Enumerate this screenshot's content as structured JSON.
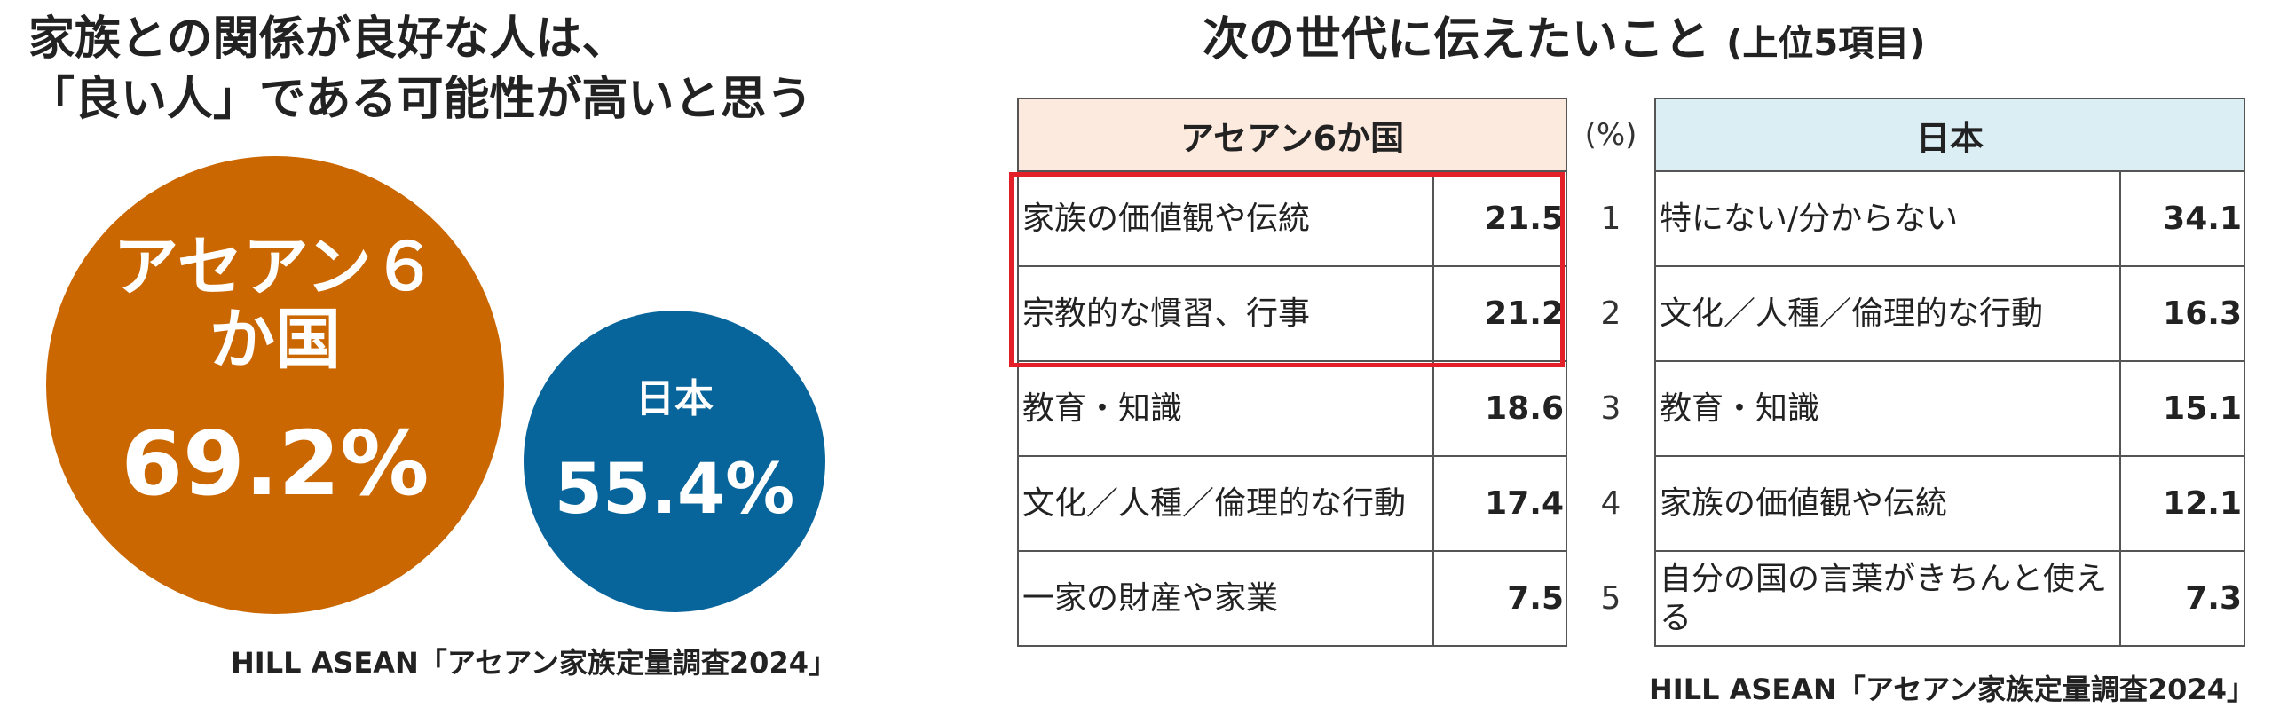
{
  "left_panel": {
    "title_line1": "家族との関係が良好な人は、",
    "title_line2": "「良い人」である可能性が高いと思う",
    "asean": {
      "label": "アセアン６か国",
      "value": "69.2%"
    },
    "japan": {
      "label": "日本",
      "value": "55.4%"
    },
    "source": "HILL ASEAN「アセアン家族定量調査2024」"
  },
  "right_panel": {
    "title": "次の世代に伝えたいこと",
    "title_sub": "(上位5項目)",
    "header_asean": "アセアン6か国",
    "header_unit": "(%)",
    "header_japan": "日本",
    "rows": [
      {
        "rank": "1",
        "asean_item": "家族の価値観や伝統",
        "asean_value": "21.5",
        "japan_item": "特にない/分からない",
        "japan_value": "34.1"
      },
      {
        "rank": "2",
        "asean_item": "宗教的な慣習、行事",
        "asean_value": "21.2",
        "japan_item": "文化／人種／倫理的な行動",
        "japan_value": "16.3"
      },
      {
        "rank": "3",
        "asean_item": "教育・知識",
        "asean_value": "18.6",
        "japan_item": "教育・知識",
        "japan_value": "15.1"
      },
      {
        "rank": "4",
        "asean_item": "文化／人種／倫理的な行動",
        "asean_value": "17.4",
        "japan_item": "家族の価値観や伝統",
        "japan_value": "12.1"
      },
      {
        "rank": "5",
        "asean_item": "一家の財産や家業",
        "asean_value": "7.5",
        "japan_item": "自分の国の言葉がきちんと使える",
        "japan_value": "7.3"
      }
    ],
    "source": "HILL ASEAN「アセアン家族定量調査2024」",
    "highlight_color": "#e32027"
  },
  "chart_data": [
    {
      "type": "bubble",
      "title": "家族との関係が良好な人は、「良い人」である可能性が高いと思う",
      "categories": [
        "アセアン６か国",
        "日本"
      ],
      "values": [
        69.2,
        55.4
      ],
      "unit": "%",
      "colors": [
        "#cb6700",
        "#07659b"
      ]
    },
    {
      "type": "table",
      "title": "次の世代に伝えたいこと",
      "subtitle": "(上位5項目)",
      "unit": "(%)",
      "columns": [
        "アセアン6か国",
        "日本"
      ],
      "ranks": [
        1,
        2,
        3,
        4,
        5
      ],
      "asean": {
        "items": [
          "家族の価値観や伝統",
          "宗教的な慣習、行事",
          "教育・知識",
          "文化／人種／倫理的な行動",
          "一家の財産や家業"
        ],
        "values": [
          21.5,
          21.2,
          18.6,
          17.4,
          7.5
        ]
      },
      "japan": {
        "items": [
          "特にない/分からない",
          "文化／人種／倫理的な行動",
          "教育・知識",
          "家族の価値観や伝統",
          "自分の国の言葉がきちんと使える"
        ],
        "values": [
          34.1,
          16.3,
          15.1,
          12.1,
          7.3
        ]
      },
      "highlighted_ranks": [
        1,
        2
      ]
    }
  ]
}
